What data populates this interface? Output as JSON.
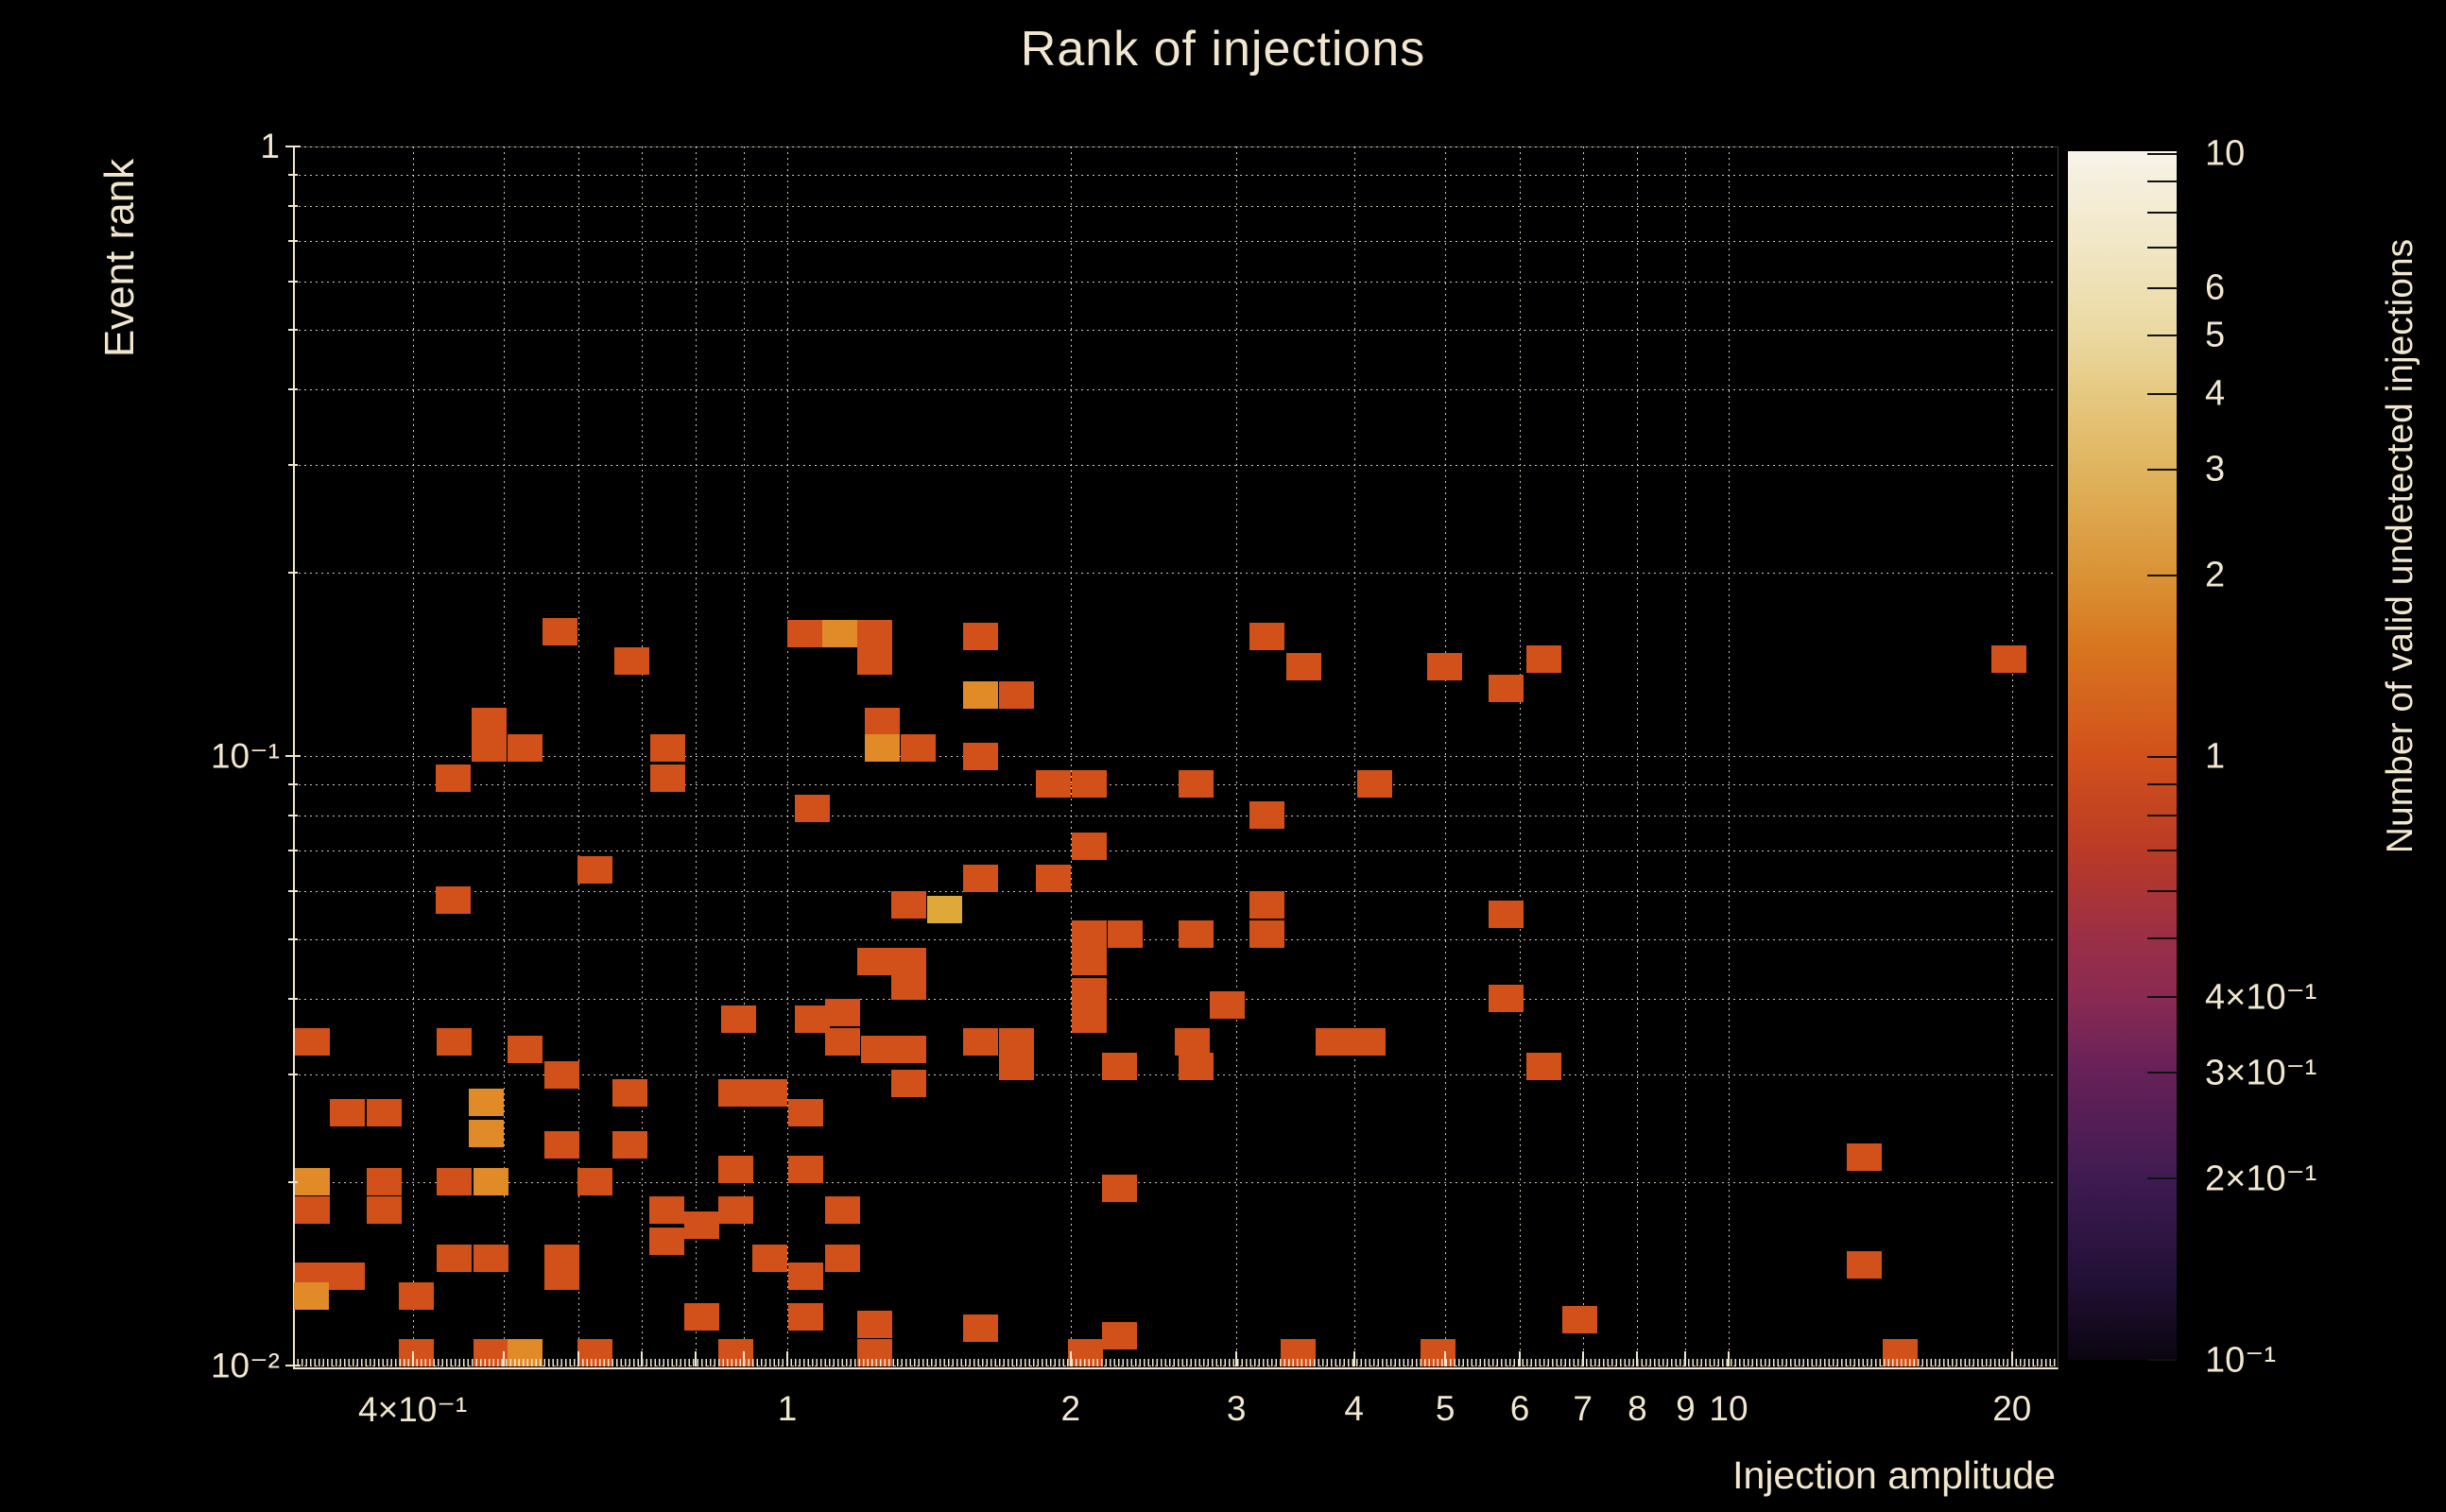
{
  "title": "Rank of injections",
  "x_axis": {
    "title": "Injection amplitude",
    "range": [
      0.2985,
      22.25
    ],
    "scale": "log",
    "gridlines": [
      0.4,
      0.5,
      0.6,
      0.7,
      0.8,
      0.9,
      1,
      2,
      3,
      4,
      5,
      6,
      7,
      8,
      9,
      10,
      20
    ],
    "tick_labels": [
      {
        "v": 0.4,
        "t": "4×10⁻¹"
      },
      {
        "v": 1,
        "t": "1"
      },
      {
        "v": 2,
        "t": "2"
      },
      {
        "v": 3,
        "t": "3"
      },
      {
        "v": 4,
        "t": "4"
      },
      {
        "v": 5,
        "t": "5"
      },
      {
        "v": 6,
        "t": "6"
      },
      {
        "v": 7,
        "t": "7"
      },
      {
        "v": 8,
        "t": "8"
      },
      {
        "v": 9,
        "t": "9"
      },
      {
        "v": 10,
        "t": "10"
      },
      {
        "v": 20,
        "t": "20"
      }
    ]
  },
  "y_axis": {
    "title": "Event rank",
    "range": [
      0.01,
      1.0
    ],
    "scale": "log",
    "gridlines": [
      1,
      0.9,
      0.8,
      0.7,
      0.6,
      0.5,
      0.4,
      0.3,
      0.2,
      0.1,
      0.09,
      0.08,
      0.07,
      0.06,
      0.05,
      0.04,
      0.03,
      0.02,
      0.01
    ],
    "major": [
      1,
      0.1,
      0.01
    ],
    "tick_labels": [
      {
        "v": 1,
        "t": "1"
      },
      {
        "v": 0.1,
        "t": "10⁻¹"
      },
      {
        "v": 0.01,
        "t": "10⁻²"
      }
    ]
  },
  "colorbar": {
    "title": "Number of valid undetected injections",
    "range": [
      0.1,
      10
    ],
    "scale": "log",
    "ticks": [
      10,
      9,
      8,
      7,
      6,
      5,
      4,
      3,
      2,
      1,
      0.9,
      0.8,
      0.7,
      0.6,
      0.5,
      0.4,
      0.3,
      0.2,
      0.1
    ],
    "tick_labels": [
      {
        "v": 10,
        "t": "10"
      },
      {
        "v": 6,
        "t": "6"
      },
      {
        "v": 5,
        "t": "5"
      },
      {
        "v": 4,
        "t": "4"
      },
      {
        "v": 3,
        "t": "3"
      },
      {
        "v": 2,
        "t": "2"
      },
      {
        "v": 1,
        "t": "1"
      },
      {
        "v": 0.4,
        "t": "4×10⁻¹"
      },
      {
        "v": 0.3,
        "t": "3×10⁻¹"
      },
      {
        "v": 0.2,
        "t": "2×10⁻¹"
      },
      {
        "v": 0.1,
        "t": "10⁻¹"
      }
    ],
    "gradient_stops": [
      {
        "f": 0.0,
        "c": "#f7f3e8"
      },
      {
        "f": 0.08,
        "c": "#f1e6c4"
      },
      {
        "f": 0.15,
        "c": "#ebd9a2"
      },
      {
        "f": 0.2,
        "c": "#e5c981"
      },
      {
        "f": 0.26,
        "c": "#e0b560"
      },
      {
        "f": 0.35,
        "c": "#da9336"
      },
      {
        "f": 0.41,
        "c": "#d7761f"
      },
      {
        "f": 0.5,
        "c": "#d2511b"
      },
      {
        "f": 0.58,
        "c": "#b93a26"
      },
      {
        "f": 0.65,
        "c": "#9b2f46"
      },
      {
        "f": 0.7,
        "c": "#8a2a52"
      },
      {
        "f": 0.76,
        "c": "#672158"
      },
      {
        "f": 0.85,
        "c": "#3f1b52"
      },
      {
        "f": 0.93,
        "c": "#231138"
      },
      {
        "f": 1.0,
        "c": "#0b0510"
      }
    ]
  },
  "colors": {
    "background": "#000000",
    "text": "#f2e7ce",
    "grid": "#f5ecd6",
    "count_1": "#d2511b",
    "count_2": "#e08b28",
    "count_3": "#dfa93a"
  },
  "chart_data": {
    "type": "heatmap",
    "title": "Rank of injections",
    "xlabel": "Injection amplitude",
    "ylabel": "Event rank",
    "zlabel": "Number of valid undetected injections",
    "xlim": [
      0.2985,
      22.25
    ],
    "ylim": [
      0.01,
      1.0
    ],
    "zlim": [
      0.1,
      10
    ],
    "grid": true,
    "cells": [
      [
        0.574,
        0.16,
        1
      ],
      [
        0.684,
        0.143,
        1
      ],
      [
        1.043,
        0.159,
        1
      ],
      [
        1.136,
        0.159,
        2
      ],
      [
        1.237,
        0.159,
        1
      ],
      [
        1.237,
        0.143,
        1
      ],
      [
        0.482,
        0.114,
        1
      ],
      [
        0.482,
        0.103,
        1
      ],
      [
        0.526,
        0.103,
        1
      ],
      [
        0.442,
        0.092,
        1
      ],
      [
        0.746,
        0.103,
        1
      ],
      [
        0.746,
        0.092,
        1
      ],
      [
        1.263,
        0.114,
        1
      ],
      [
        1.263,
        0.103,
        2
      ],
      [
        1.376,
        0.103,
        1
      ],
      [
        1.062,
        0.082,
        1
      ],
      [
        0.624,
        0.065,
        1
      ],
      [
        0.442,
        0.058,
        1
      ],
      [
        1.237,
        0.046,
        1
      ],
      [
        1.347,
        0.046,
        1
      ],
      [
        1.347,
        0.042,
        1
      ],
      [
        0.887,
        0.037,
        1
      ],
      [
        1.062,
        0.037,
        1
      ],
      [
        0.527,
        0.033,
        1
      ],
      [
        0.576,
        0.03,
        1
      ],
      [
        1.146,
        0.038,
        1
      ],
      [
        1.146,
        0.034,
        1
      ],
      [
        1.251,
        0.033,
        1
      ],
      [
        1.603,
        0.157,
        1
      ],
      [
        3.229,
        0.157,
        1
      ],
      [
        3.534,
        0.14,
        1
      ],
      [
        4.987,
        0.14,
        1
      ],
      [
        1.603,
        0.126,
        2
      ],
      [
        1.75,
        0.126,
        1
      ],
      [
        1.603,
        0.1,
        1
      ],
      [
        1.915,
        0.09,
        1
      ],
      [
        2.091,
        0.09,
        1
      ],
      [
        2.715,
        0.09,
        1
      ],
      [
        4.203,
        0.09,
        1
      ],
      [
        3.229,
        0.08,
        1
      ],
      [
        2.091,
        0.071,
        1
      ],
      [
        1.603,
        0.063,
        1
      ],
      [
        1.915,
        0.063,
        1
      ],
      [
        1.347,
        0.057,
        1
      ],
      [
        3.229,
        0.057,
        1
      ],
      [
        3.229,
        0.051,
        1
      ],
      [
        2.091,
        0.051,
        1
      ],
      [
        2.283,
        0.051,
        1
      ],
      [
        2.715,
        0.051,
        1
      ],
      [
        1.468,
        0.056,
        3
      ],
      [
        2.091,
        0.046,
        1
      ],
      [
        2.091,
        0.041,
        1
      ],
      [
        2.091,
        0.037,
        1
      ],
      [
        1.347,
        0.033,
        1
      ],
      [
        1.347,
        0.029,
        1
      ],
      [
        2.715,
        0.031,
        1
      ],
      [
        2.93,
        0.039,
        1
      ],
      [
        6.371,
        0.144,
        1
      ],
      [
        5.808,
        0.129,
        1
      ],
      [
        19.83,
        0.144,
        1
      ],
      [
        5.808,
        0.055,
        1
      ],
      [
        5.808,
        0.04,
        1
      ],
      [
        0.313,
        0.034,
        1
      ],
      [
        0.443,
        0.034,
        1
      ],
      [
        0.341,
        0.026,
        1
      ],
      [
        0.373,
        0.026,
        1
      ],
      [
        0.479,
        0.027,
        2
      ],
      [
        0.479,
        0.024,
        2
      ],
      [
        0.576,
        0.023,
        1
      ],
      [
        0.681,
        0.028,
        1
      ],
      [
        0.681,
        0.023,
        1
      ],
      [
        0.881,
        0.028,
        1
      ],
      [
        0.959,
        0.028,
        1
      ],
      [
        1.045,
        0.026,
        1
      ],
      [
        0.881,
        0.021,
        1
      ],
      [
        1.045,
        0.021,
        1
      ],
      [
        0.313,
        0.02,
        2
      ],
      [
        0.313,
        0.018,
        1
      ],
      [
        0.373,
        0.02,
        1
      ],
      [
        0.373,
        0.018,
        1
      ],
      [
        0.443,
        0.02,
        1
      ],
      [
        0.484,
        0.02,
        2
      ],
      [
        0.625,
        0.02,
        1
      ],
      [
        0.744,
        0.018,
        1
      ],
      [
        0.744,
        0.016,
        1
      ],
      [
        0.812,
        0.017,
        1
      ],
      [
        0.881,
        0.018,
        1
      ],
      [
        1.146,
        0.018,
        1
      ],
      [
        0.443,
        0.015,
        1
      ],
      [
        0.484,
        0.015,
        1
      ],
      [
        0.576,
        0.015,
        1
      ],
      [
        0.576,
        0.014,
        1
      ],
      [
        0.959,
        0.015,
        1
      ],
      [
        1.146,
        0.015,
        1
      ],
      [
        0.313,
        0.014,
        1
      ],
      [
        0.341,
        0.014,
        1
      ],
      [
        1.045,
        0.014,
        1
      ],
      [
        1.045,
        0.012,
        1
      ],
      [
        0.312,
        0.013,
        2
      ],
      [
        0.404,
        0.013,
        1
      ],
      [
        0.812,
        0.012,
        1
      ],
      [
        1.237,
        0.0117,
        1
      ],
      [
        1.237,
        0.0105,
        1
      ],
      [
        0.404,
        0.0105,
        1
      ],
      [
        0.484,
        0.0105,
        1
      ],
      [
        0.527,
        0.0105,
        2
      ],
      [
        0.625,
        0.0105,
        1
      ],
      [
        0.881,
        0.0105,
        1
      ],
      [
        1.603,
        0.034,
        1
      ],
      [
        1.75,
        0.034,
        1
      ],
      [
        1.75,
        0.031,
        1
      ],
      [
        2.69,
        0.034,
        1
      ],
      [
        2.256,
        0.031,
        1
      ],
      [
        3.796,
        0.034,
        1
      ],
      [
        4.135,
        0.034,
        1
      ],
      [
        2.256,
        0.0195,
        1
      ],
      [
        2.256,
        0.0112,
        1
      ],
      [
        1.603,
        0.0115,
        1
      ],
      [
        2.072,
        0.0105,
        1
      ],
      [
        3.485,
        0.0105,
        1
      ],
      [
        4.907,
        0.0105,
        1
      ],
      [
        6.371,
        0.031,
        1
      ],
      [
        13.92,
        0.022,
        1
      ],
      [
        13.92,
        0.0146,
        1
      ],
      [
        15.23,
        0.0105,
        1
      ],
      [
        6.941,
        0.0119,
        1
      ]
    ]
  }
}
